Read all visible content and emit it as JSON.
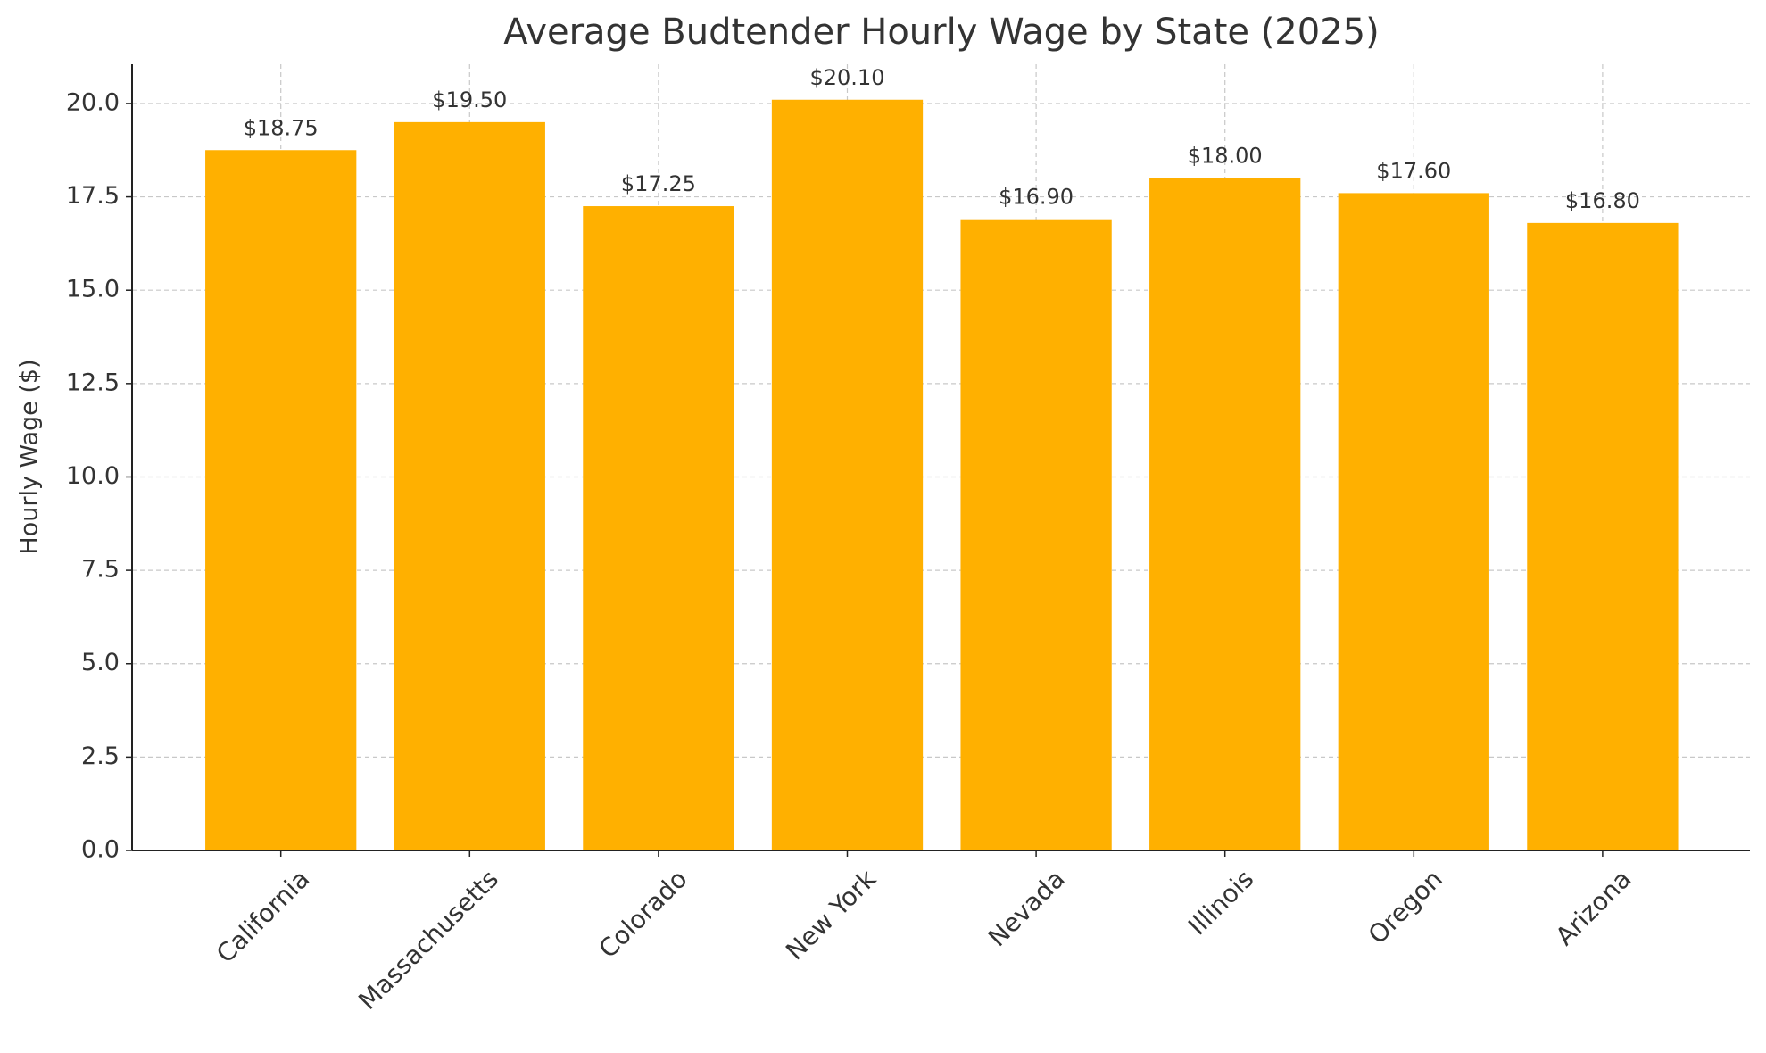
{
  "chart_data": {
    "type": "bar",
    "title": "Average Budtender Hourly Wage by State (2025)",
    "y_label": "Hourly Wage ($)",
    "categories": [
      "California",
      "Massachusetts",
      "Colorado",
      "New York",
      "Nevada",
      "Illinois",
      "Oregon",
      "Arizona"
    ],
    "values": [
      18.75,
      19.5,
      17.25,
      20.1,
      16.9,
      18.0,
      17.6,
      16.8
    ],
    "value_labels": [
      "$18.75",
      "$19.50",
      "$17.25",
      "$20.10",
      "$16.90",
      "$18.00",
      "$17.60",
      "$16.80"
    ],
    "color": "#ffb000",
    "ylim": [
      0,
      21.05
    ],
    "yticks": [
      {
        "value": 0,
        "label": "0.0"
      },
      {
        "value": 2.5,
        "label": "2.5"
      },
      {
        "value": 5,
        "label": "5.0"
      },
      {
        "value": 7.5,
        "label": "7.5"
      },
      {
        "value": 10,
        "label": "10.0"
      },
      {
        "value": 12.5,
        "label": "12.5"
      },
      {
        "value": 15,
        "label": "15.0"
      },
      {
        "value": 17.5,
        "label": "17.5"
      },
      {
        "value": 20,
        "label": "20.0"
      }
    ],
    "grid": true
  }
}
